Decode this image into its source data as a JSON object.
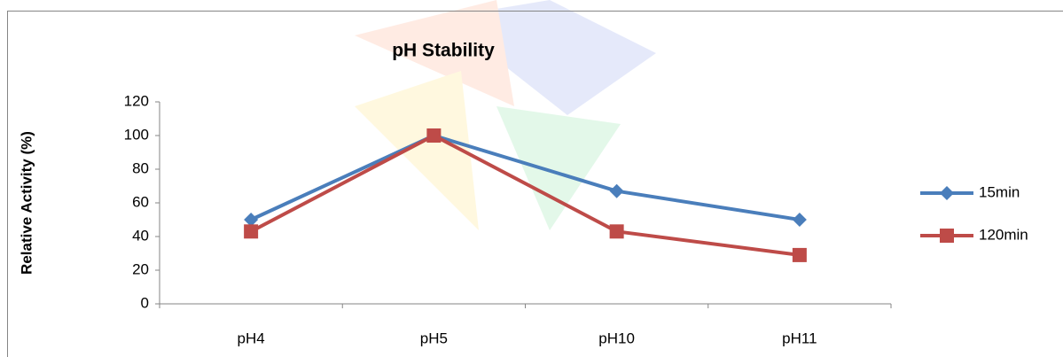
{
  "chart_data": {
    "type": "line",
    "title": "pH Stability",
    "y_label": "Relative Activity (%)",
    "categories": [
      "pH4",
      "pH5",
      "pH10",
      "pH11"
    ],
    "series": [
      {
        "name": "15min",
        "color": "#4a7ebb",
        "marker": "diamond",
        "values": [
          50,
          100,
          67,
          50
        ]
      },
      {
        "name": "120min",
        "color": "#be4b48",
        "marker": "square",
        "values": [
          43,
          100,
          43,
          29
        ]
      }
    ],
    "ylim": [
      0,
      120
    ],
    "yticks": [
      0,
      20,
      40,
      60,
      80,
      100,
      120
    ],
    "grid": false,
    "legend": "right"
  }
}
